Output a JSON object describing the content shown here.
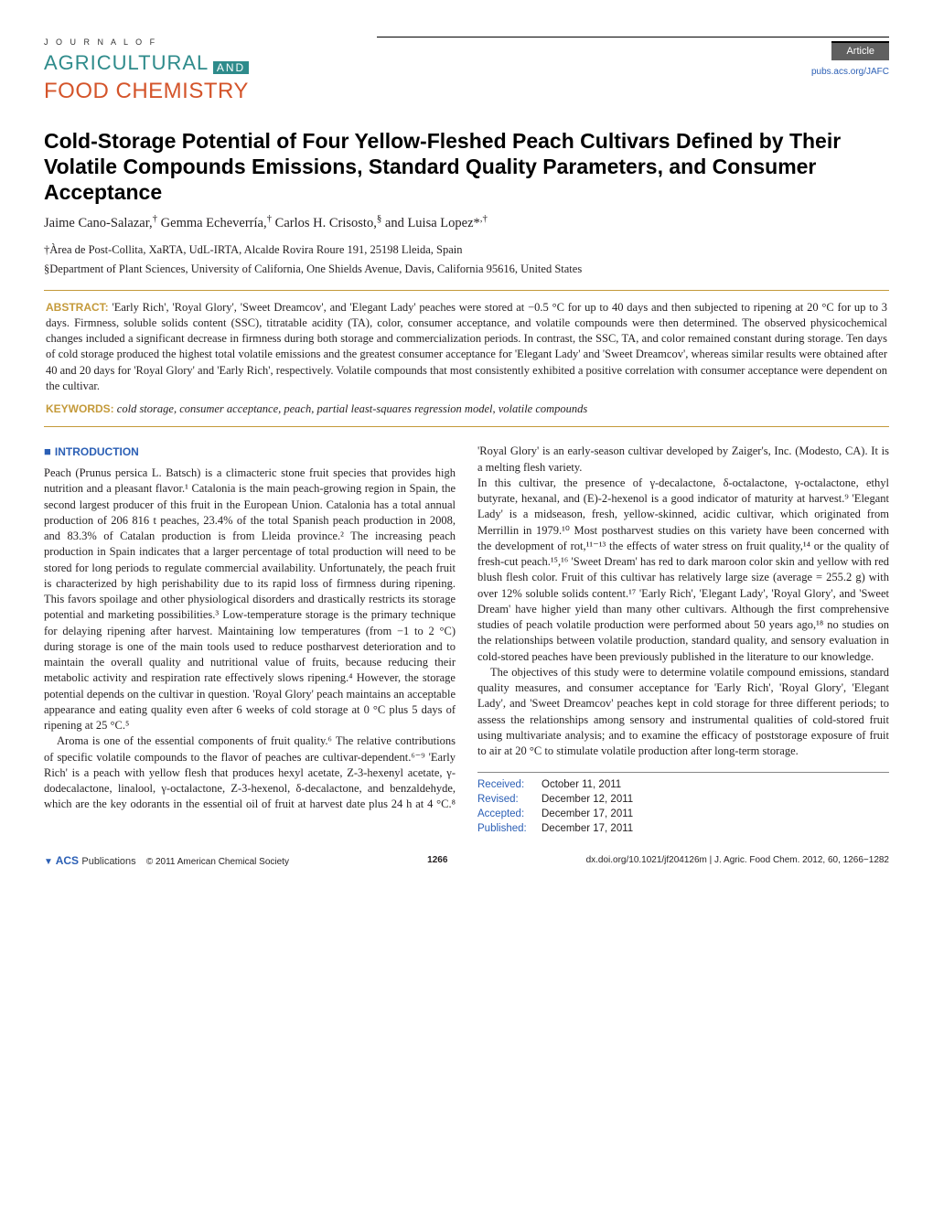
{
  "header": {
    "journal_line1": "J O U R N A L   O F",
    "journal_agricultural": "AGRICULTURAL",
    "journal_and": "AND",
    "journal_food": "FOOD CHEMISTRY",
    "article_label": "Article",
    "pubs_link": "pubs.acs.org/JAFC",
    "colors": {
      "agricultural": "#2e8b8b",
      "food": "#d4542a",
      "badge_bg": "#606060",
      "link": "#2b5fb5",
      "border_gold": "#c49a3a"
    }
  },
  "title": "Cold-Storage Potential of Four Yellow-Fleshed Peach Cultivars Defined by Their Volatile Compounds Emissions, Standard Quality Parameters, and Consumer Acceptance",
  "authors_html": "Jaime Cano-Salazar,† Gemma Echeverría,† Carlos H. Crisosto,§ and Luisa Lopez*,†",
  "affiliations": [
    "†Àrea de Post-Collita, XaRTA, UdL-IRTA, Alcalde Rovira Roure 191, 25198 Lleida, Spain",
    "§Department of Plant Sciences, University of California, One Shields Avenue, Davis, California 95616, United States"
  ],
  "abstract": {
    "label": "ABSTRACT:",
    "text": "'Early Rich', 'Royal Glory', 'Sweet Dreamcov', and 'Elegant Lady' peaches were stored at −0.5 °C for up to 40 days and then subjected to ripening at 20 °C for up to 3 days. Firmness, soluble solids content (SSC), titratable acidity (TA), color, consumer acceptance, and volatile compounds were then determined. The observed physicochemical changes included a significant decrease in firmness during both storage and commercialization periods. In contrast, the SSC, TA, and color remained constant during storage. Ten days of cold storage produced the highest total volatile emissions and the greatest consumer acceptance for 'Elegant Lady' and 'Sweet Dreamcov', whereas similar results were obtained after 40 and 20 days for 'Royal Glory' and 'Early Rich', respectively. Volatile compounds that most consistently exhibited a positive correlation with consumer acceptance were dependent on the cultivar.",
    "keywords_label": "KEYWORDS:",
    "keywords": "cold storage, consumer acceptance, peach, partial least-squares regression model, volatile compounds"
  },
  "section_intro": "INTRODUCTION",
  "body": {
    "p1": "Peach (Prunus persica L. Batsch) is a climacteric stone fruit species that provides high nutrition and a pleasant flavor.¹ Catalonia is the main peach-growing region in Spain, the second largest producer of this fruit in the European Union. Catalonia has a total annual production of 206 816 t peaches, 23.4% of the total Spanish peach production in 2008, and 83.3% of Catalan production is from Lleida province.² The increasing peach production in Spain indicates that a larger percentage of total production will need to be stored for long periods to regulate commercial availability. Unfortunately, the peach fruit is characterized by high perishability due to its rapid loss of firmness during ripening. This favors spoilage and other physiological disorders and drastically restricts its storage potential and marketing possibilities.³ Low-temperature storage is the primary technique for delaying ripening after harvest. Maintaining low temperatures (from −1 to 2 °C) during storage is one of the main tools used to reduce postharvest deterioration and to maintain the overall quality and nutritional value of fruits, because reducing their metabolic activity and respiration rate effectively slows ripening.⁴ However, the storage potential depends on the cultivar in question. 'Royal Glory' peach maintains an acceptable appearance and eating quality even after 6 weeks of cold storage at 0 °C plus 5 days of ripening at 25 °C.⁵",
    "p2": "Aroma is one of the essential components of fruit quality.⁶ The relative contributions of specific volatile compounds to the flavor of peaches are cultivar-dependent.⁶⁻⁹ 'Early Rich' is a peach with yellow flesh that produces hexyl acetate, Z-3-hexenyl acetate, γ-dodecalactone, linalool, γ-octalactone, Z-3-hexenol, δ-decalactone, and benzaldehyde, which are the key odorants in the essential oil of fruit at harvest date plus 24 h at 4 °C.⁸ 'Royal Glory' is an early-season cultivar developed by Zaiger's, Inc. (Modesto, CA). It is a melting flesh variety.",
    "p3": "In this cultivar, the presence of γ-decalactone, δ-octalactone, γ-octalactone, ethyl butyrate, hexanal, and (E)-2-hexenol is a good indicator of maturity at harvest.⁹ 'Elegant Lady' is a midseason, fresh, yellow-skinned, acidic cultivar, which originated from Merrillin in 1979.¹⁰ Most postharvest studies on this variety have been concerned with the development of rot,¹¹⁻¹³ the effects of water stress on fruit quality,¹⁴ or the quality of fresh-cut peach.¹⁵,¹⁶ 'Sweet Dream' has red to dark maroon color skin and yellow with red blush flesh color. Fruit of this cultivar has relatively large size (average = 255.2 g) with over 12% soluble solids content.¹⁷ 'Early Rich', 'Elegant Lady', 'Royal Glory', and 'Sweet Dream' have higher yield than many other cultivars. Although the first comprehensive studies of peach volatile production were performed about 50 years ago,¹⁸ no studies on the relationships between volatile production, standard quality, and sensory evaluation in cold-stored peaches have been previously published in the literature to our knowledge.",
    "p4": "The objectives of this study were to determine volatile compound emissions, standard quality measures, and consumer acceptance for 'Early Rich', 'Royal Glory', 'Elegant Lady', and 'Sweet Dreamcov' peaches kept in cold storage for three different periods; to assess the relationships among sensory and instrumental qualities of cold-stored fruit using multivariate analysis; and to examine the efficacy of poststorage exposure of fruit to air at 20 °C to stimulate volatile production after long-term storage."
  },
  "dates": {
    "received_label": "Received:",
    "received": "October 11, 2011",
    "revised_label": "Revised:",
    "revised": "December 12, 2011",
    "accepted_label": "Accepted:",
    "accepted": "December 17, 2011",
    "published_label": "Published:",
    "published": "December 17, 2011"
  },
  "footer": {
    "acs_label": "ACS Publications",
    "copyright": "© 2011 American Chemical Society",
    "page": "1266",
    "doi": "dx.doi.org/10.1021/jf204126m | J. Agric. Food Chem. 2012, 60, 1266−1282"
  }
}
